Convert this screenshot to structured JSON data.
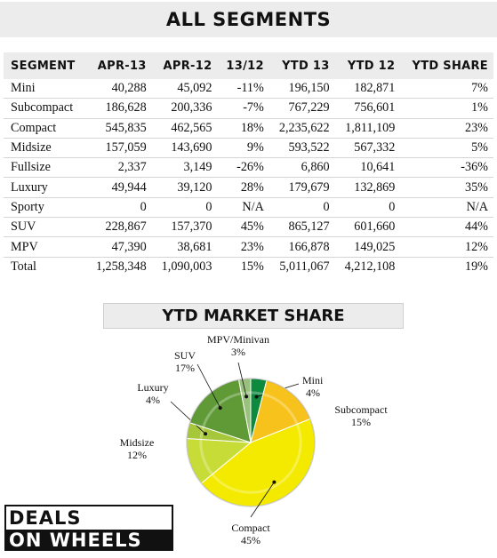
{
  "title": "ALL SEGMENTS",
  "table": {
    "headers": [
      "SEGMENT",
      "APR-13",
      "APR-12",
      "13/12",
      "YTD 13",
      "YTD 12",
      "YTD SHARE"
    ],
    "rows": [
      [
        "Mini",
        "40,288",
        "45,092",
        "-11%",
        "196,150",
        "182,871",
        "7%"
      ],
      [
        "Subcompact",
        "186,628",
        "200,336",
        "-7%",
        "767,229",
        "756,601",
        "1%"
      ],
      [
        "Compact",
        "545,835",
        "462,565",
        "18%",
        "2,235,622",
        "1,811,109",
        "23%"
      ],
      [
        "Midsize",
        "157,059",
        "143,690",
        "9%",
        "593,522",
        "567,332",
        "5%"
      ],
      [
        "Fullsize",
        "2,337",
        "3,149",
        "-26%",
        "6,860",
        "10,641",
        "-36%"
      ],
      [
        "Luxury",
        "49,944",
        "39,120",
        "28%",
        "179,679",
        "132,869",
        "35%"
      ],
      [
        "Sporty",
        "0",
        "0",
        "N/A",
        "0",
        "0",
        "N/A"
      ],
      [
        "SUV",
        "228,867",
        "157,370",
        "45%",
        "865,127",
        "601,660",
        "44%"
      ],
      [
        "MPV",
        "47,390",
        "38,681",
        "23%",
        "166,878",
        "149,025",
        "12%"
      ],
      [
        "Total",
        "1,258,348",
        "1,090,003",
        "15%",
        "5,011,067",
        "4,212,108",
        "19%"
      ]
    ]
  },
  "chart_data": {
    "type": "pie",
    "title": "YTD MARKET SHARE",
    "start_angle_deg": 0,
    "slices": [
      {
        "name": "Mini",
        "label": "4%",
        "value": 4,
        "color": "#0e8a3e"
      },
      {
        "name": "Subcompact",
        "label": "15%",
        "value": 15,
        "color": "#f7c21b"
      },
      {
        "name": "Compact",
        "label": "45%",
        "value": 45,
        "color": "#f3ea00"
      },
      {
        "name": "Midsize",
        "label": "12%",
        "value": 12,
        "color": "#c8dc38"
      },
      {
        "name": "Luxury",
        "label": "4%",
        "value": 4,
        "color": "#a6c73a"
      },
      {
        "name": "SUV",
        "label": "17%",
        "value": 17,
        "color": "#5f9a36"
      },
      {
        "name": "MPV/Minivan",
        "label": "3%",
        "value": 3,
        "color": "#9ac07e"
      }
    ]
  },
  "logo": {
    "line1": "DEALS",
    "line2": "ON WHEELS"
  }
}
